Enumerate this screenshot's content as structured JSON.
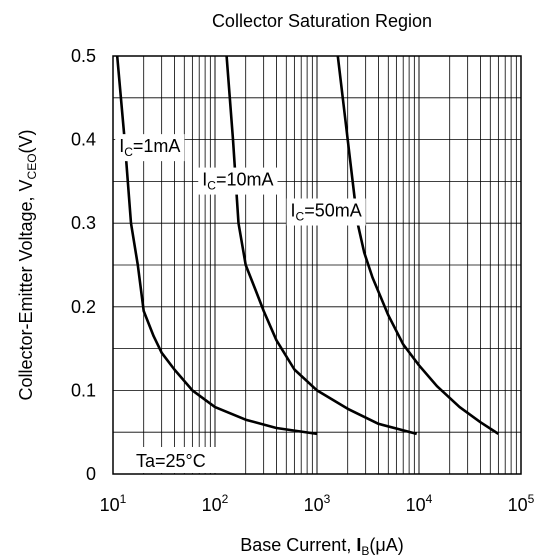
{
  "chart_data": {
    "type": "line",
    "title": "Collector Saturation Region",
    "xlabel": {
      "prefix": "Base Current, ",
      "symbol": "I",
      "sub": "B",
      "suffix": "(μA)"
    },
    "ylabel": {
      "prefix": "Collector-Emitter Voltage, V",
      "sub": "CEO",
      "suffix": "(V)"
    },
    "x_scale": "log",
    "xlim": [
      10,
      100000
    ],
    "ylim": [
      0,
      0.5
    ],
    "x_ticks": [
      {
        "base": "10",
        "exp": "1"
      },
      {
        "base": "10",
        "exp": "2"
      },
      {
        "base": "10",
        "exp": "3"
      },
      {
        "base": "10",
        "exp": "4"
      },
      {
        "base": "10",
        "exp": "5"
      }
    ],
    "y_ticks": [
      "0",
      "0.1",
      "0.2",
      "0.3",
      "0.4",
      "0.5"
    ],
    "grid": true,
    "annotation": "Ta=25°C",
    "series": [
      {
        "name": "IC=1mA",
        "label": {
          "symbol": "I",
          "sub": "C",
          "rest": "=1mA"
        },
        "points": [
          [
            11,
            0.5
          ],
          [
            13,
            0.4
          ],
          [
            15,
            0.3
          ],
          [
            17.5,
            0.25
          ],
          [
            20,
            0.195
          ],
          [
            25,
            0.165
          ],
          [
            30,
            0.145
          ],
          [
            40,
            0.125
          ],
          [
            60,
            0.1
          ],
          [
            100,
            0.08
          ],
          [
            200,
            0.065
          ],
          [
            400,
            0.055
          ],
          [
            1000,
            0.048
          ]
        ]
      },
      {
        "name": "IC=10mA",
        "label": {
          "symbol": "I",
          "sub": "C",
          "rest": "=10mA"
        },
        "points": [
          [
            130,
            0.5
          ],
          [
            150,
            0.4
          ],
          [
            170,
            0.3
          ],
          [
            200,
            0.25
          ],
          [
            250,
            0.22
          ],
          [
            300,
            0.195
          ],
          [
            400,
            0.16
          ],
          [
            600,
            0.125
          ],
          [
            1000,
            0.1
          ],
          [
            2000,
            0.078
          ],
          [
            4000,
            0.06
          ],
          [
            9500,
            0.048
          ]
        ]
      },
      {
        "name": "IC=50mA",
        "label": {
          "symbol": "I",
          "sub": "C",
          "rest": "=50mA"
        },
        "points": [
          [
            1600,
            0.5
          ],
          [
            2000,
            0.4
          ],
          [
            2500,
            0.3
          ],
          [
            2900,
            0.265
          ],
          [
            3500,
            0.235
          ],
          [
            5000,
            0.19
          ],
          [
            7000,
            0.155
          ],
          [
            10000,
            0.13
          ],
          [
            15000,
            0.105
          ],
          [
            25000,
            0.08
          ],
          [
            40000,
            0.062
          ],
          [
            60000,
            0.048
          ]
        ]
      }
    ]
  }
}
